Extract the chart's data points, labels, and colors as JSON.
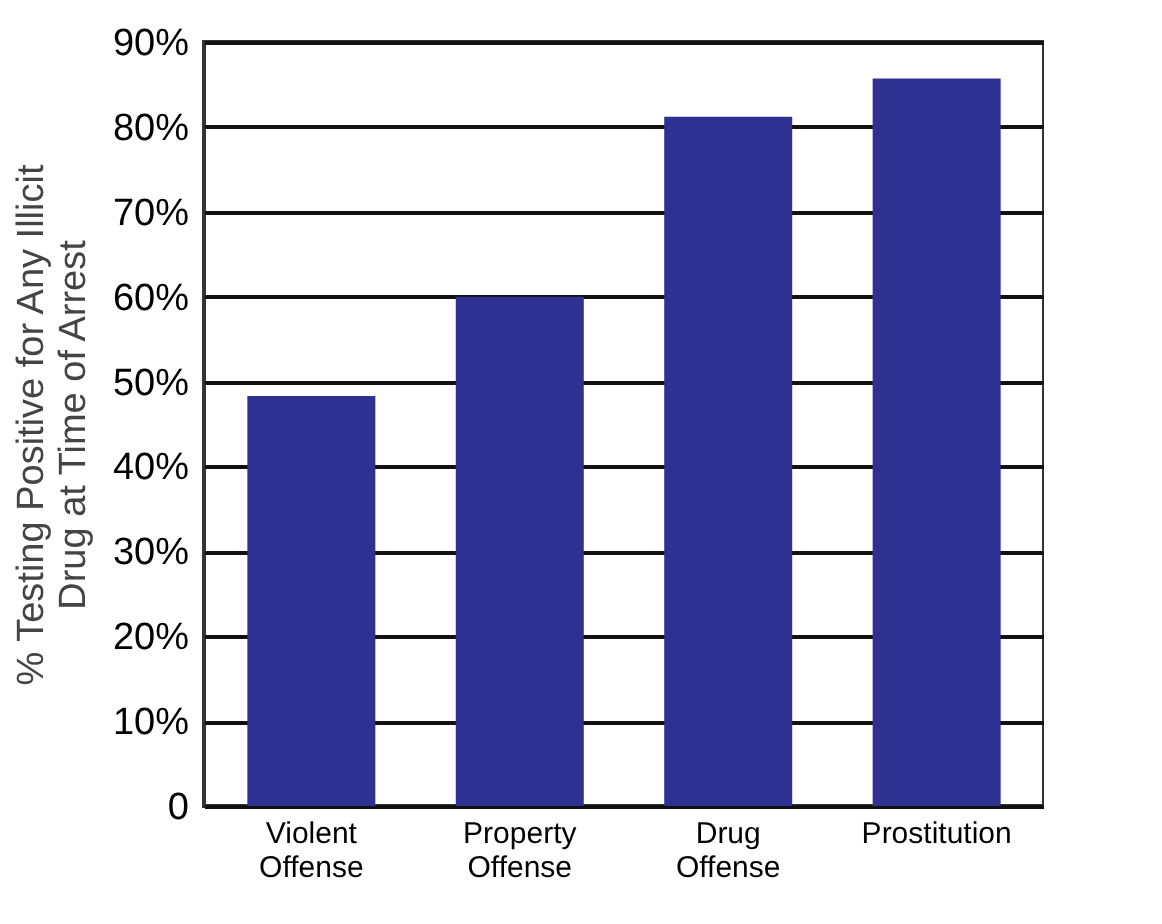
{
  "chart_data": {
    "type": "bar",
    "ylabel": "% Testing Positive for Any Illicit Drug at Time of Arrest",
    "categories": [
      "Violent Offense",
      "Property Offense",
      "Drug Offense",
      "Prostitution"
    ],
    "values": [
      48.3,
      60,
      81.2,
      85.7
    ],
    "color": "#2e3192",
    "ylim": [
      0,
      90
    ],
    "yticks": [
      {
        "value": 0,
        "label": "0"
      },
      {
        "value": 10,
        "label": "10%"
      },
      {
        "value": 20,
        "label": "20%"
      },
      {
        "value": 30,
        "label": "30%"
      },
      {
        "value": 40,
        "label": "40%"
      },
      {
        "value": 50,
        "label": "50%"
      },
      {
        "value": 60,
        "label": "60%"
      },
      {
        "value": 70,
        "label": "70%"
      },
      {
        "value": 80,
        "label": "80%"
      },
      {
        "value": 90,
        "label": "90%"
      }
    ],
    "grid": "y"
  }
}
